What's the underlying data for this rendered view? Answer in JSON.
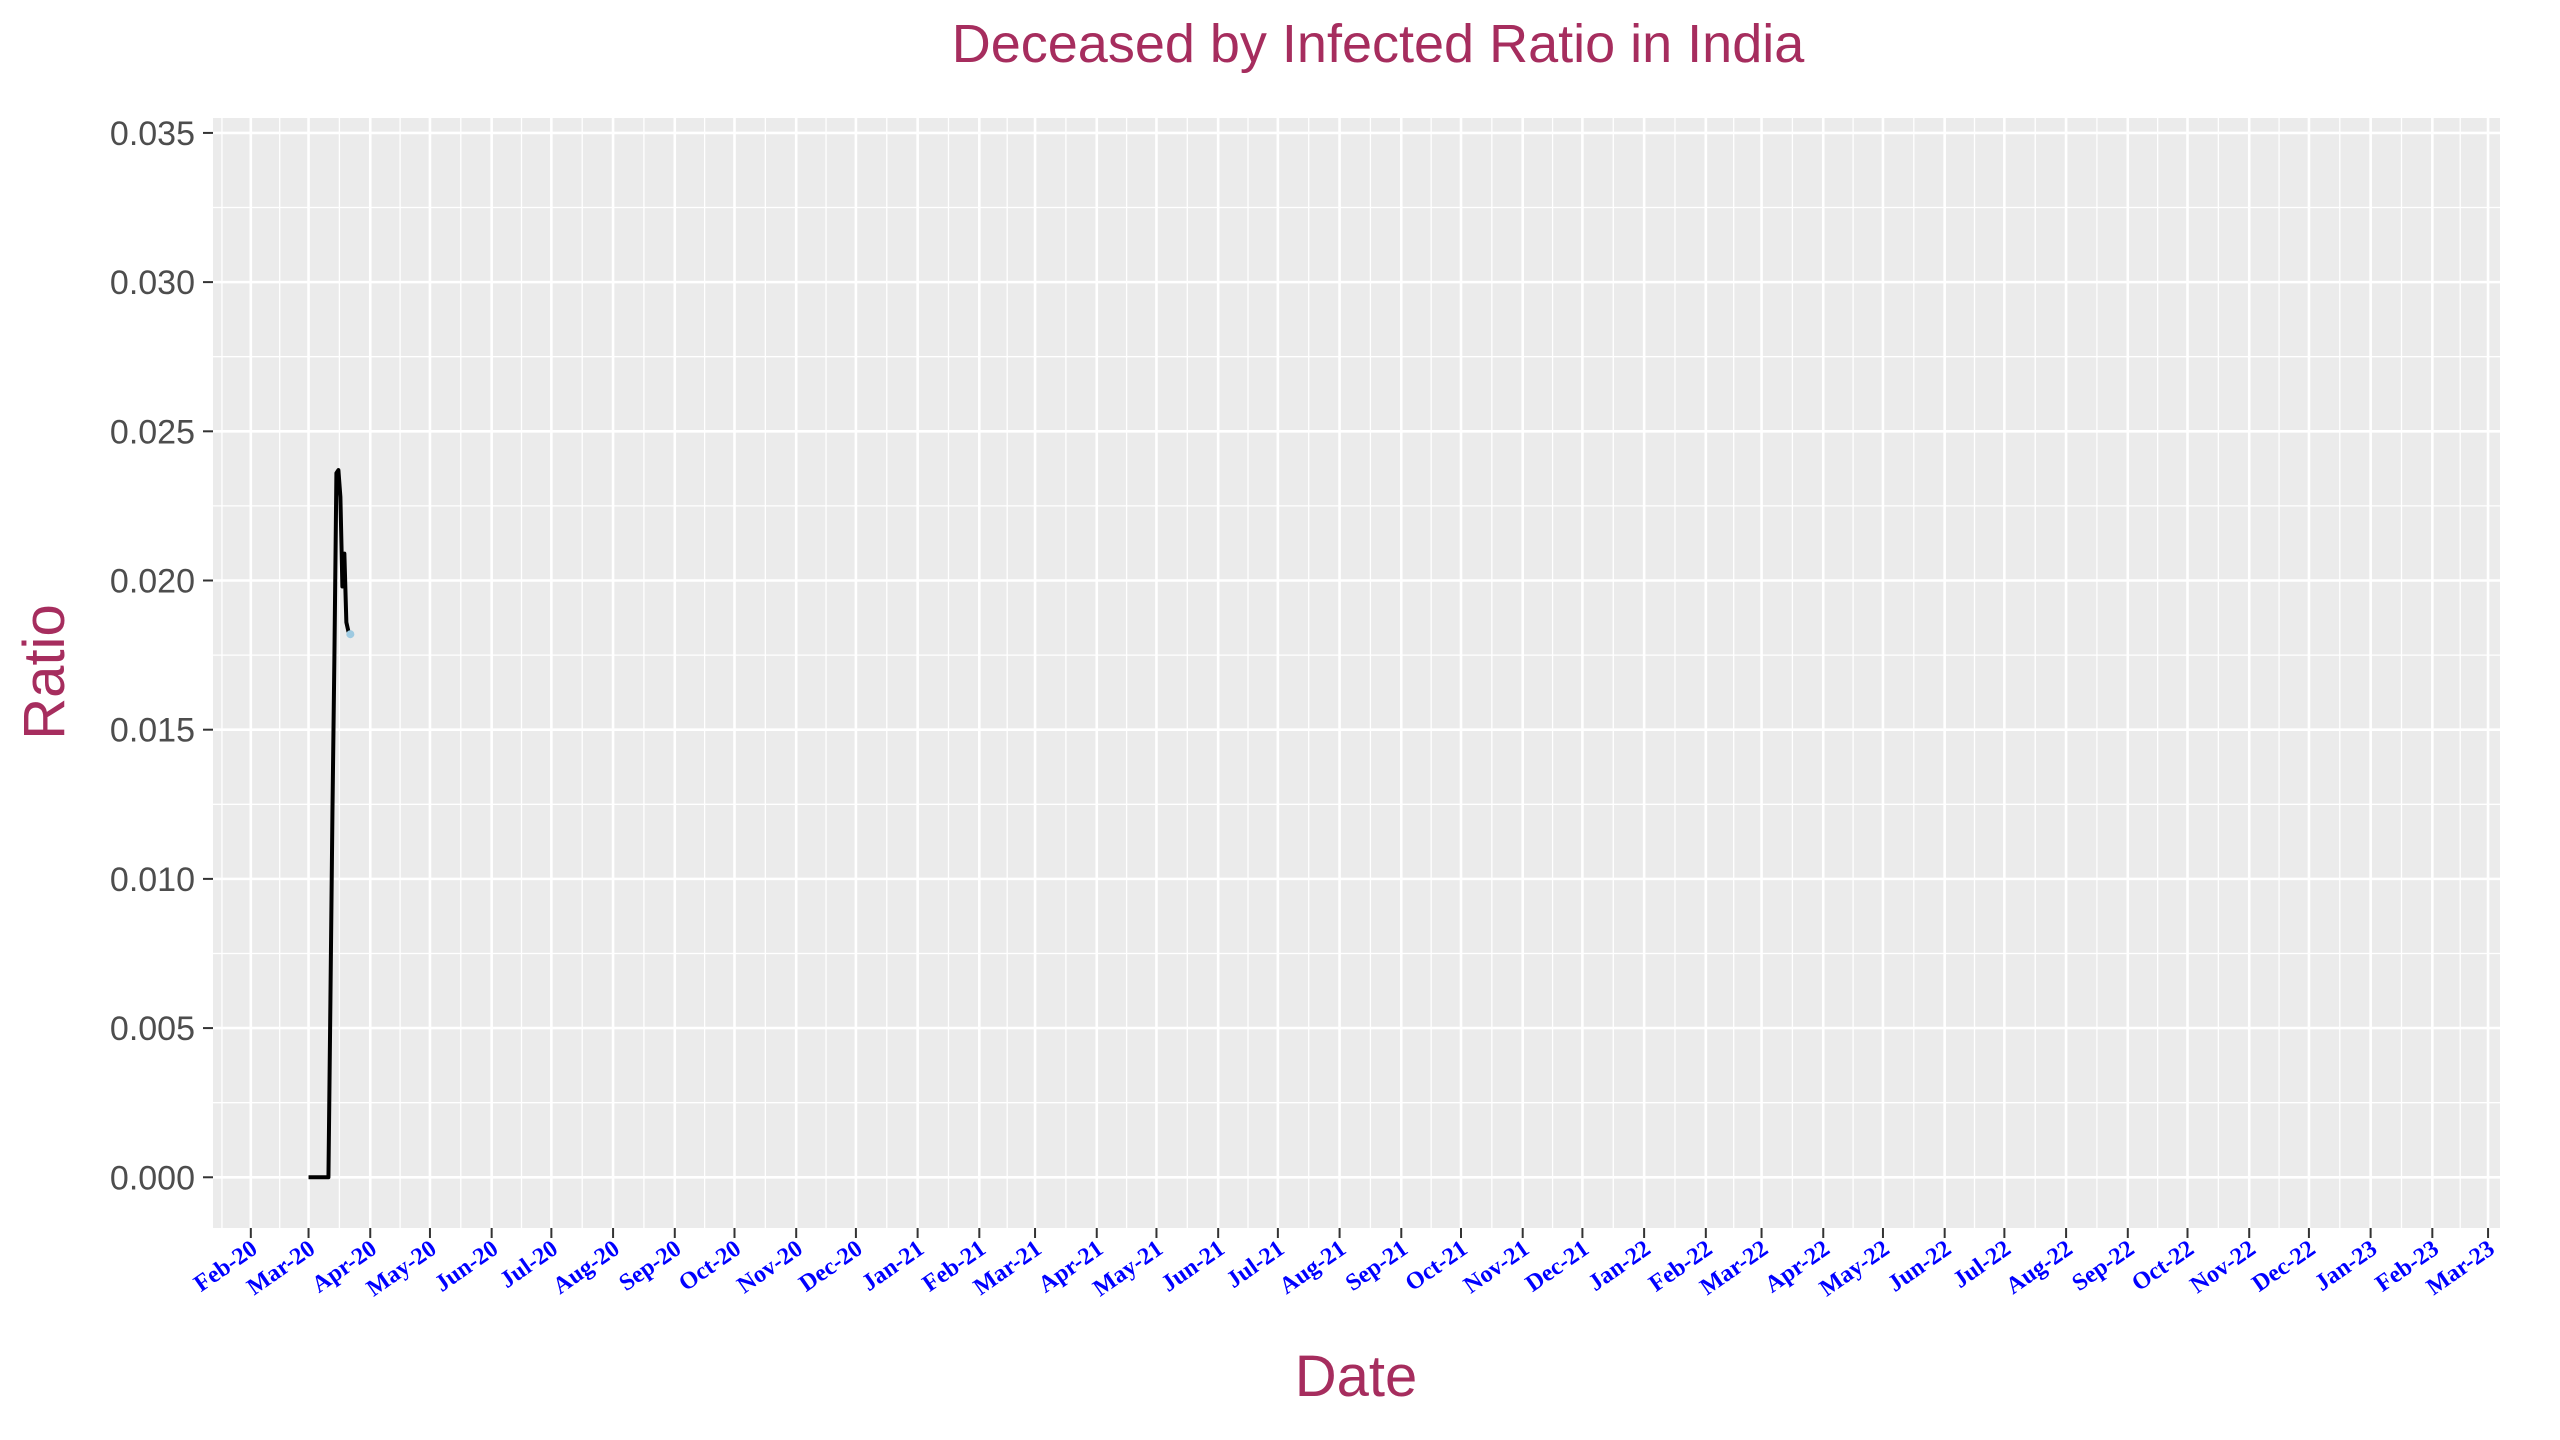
{
  "chart_data": {
    "type": "line",
    "title": "Deceased by Infected Ratio in India",
    "xlabel": "Date",
    "ylabel": "Ratio",
    "x_axis_type": "date",
    "xlim": [
      "2020-01-13",
      "2023-03-07"
    ],
    "ylim": [
      -0.0017,
      0.0355
    ],
    "y_ticks": [
      0.0,
      0.005,
      0.01,
      0.015,
      0.02,
      0.025,
      0.03,
      0.035
    ],
    "y_tick_labels": [
      "0.000",
      "0.005",
      "0.010",
      "0.015",
      "0.020",
      "0.025",
      "0.030",
      "0.035"
    ],
    "x_tick_labels": [
      "Feb-20",
      "Mar-20",
      "Apr-20",
      "May-20",
      "Jun-20",
      "Jul-20",
      "Aug-20",
      "Sep-20",
      "Oct-20",
      "Nov-20",
      "Dec-20",
      "Jan-21",
      "Feb-21",
      "Mar-21",
      "Apr-21",
      "May-21",
      "Jun-21",
      "Jul-21",
      "Aug-21",
      "Sep-21",
      "Oct-21",
      "Nov-21",
      "Dec-21",
      "Jan-22",
      "Feb-22",
      "Mar-22",
      "Apr-22",
      "May-22",
      "Jun-22",
      "Jul-22",
      "Aug-22",
      "Sep-22",
      "Oct-22",
      "Nov-22",
      "Dec-22",
      "Jan-23",
      "Feb-23",
      "Mar-23"
    ],
    "x_tick_dates": [
      "2020-02-01",
      "2020-03-01",
      "2020-04-01",
      "2020-05-01",
      "2020-06-01",
      "2020-07-01",
      "2020-08-01",
      "2020-09-01",
      "2020-10-01",
      "2020-11-01",
      "2020-12-01",
      "2021-01-01",
      "2021-02-01",
      "2021-03-01",
      "2021-04-01",
      "2021-05-01",
      "2021-06-01",
      "2021-07-01",
      "2021-08-01",
      "2021-09-01",
      "2021-10-01",
      "2021-11-01",
      "2021-12-01",
      "2022-01-01",
      "2022-02-01",
      "2022-03-01",
      "2022-04-01",
      "2022-05-01",
      "2022-06-01",
      "2022-07-01",
      "2022-08-01",
      "2022-09-01",
      "2022-10-01",
      "2022-11-01",
      "2022-12-01",
      "2023-01-01",
      "2023-02-01",
      "2023-03-01"
    ],
    "grid": true,
    "series": [
      {
        "line_color": "#000000",
        "x": [
          "2020-03-01",
          "2020-03-02",
          "2020-03-03",
          "2020-03-04",
          "2020-03-05",
          "2020-03-06",
          "2020-03-07",
          "2020-03-08",
          "2020-03-09",
          "2020-03-10",
          "2020-03-11",
          "2020-03-12",
          "2020-03-13",
          "2020-03-14",
          "2020-03-15",
          "2020-03-16",
          "2020-03-17",
          "2020-03-18",
          "2020-03-19",
          "2020-03-20",
          "2020-03-21",
          "2020-03-22"
        ],
        "y": [
          0,
          0,
          0,
          0,
          0,
          0,
          0,
          0,
          0,
          0,
          0,
          0.006,
          0.0122,
          0.0175,
          0.0236,
          0.0237,
          0.0228,
          0.0198,
          0.0209,
          0.0186,
          0.0183,
          0.0182
        ]
      }
    ],
    "highlight_point": {
      "x": "2020-03-22",
      "y": 0.0182,
      "color": "#9ECAE1"
    }
  }
}
